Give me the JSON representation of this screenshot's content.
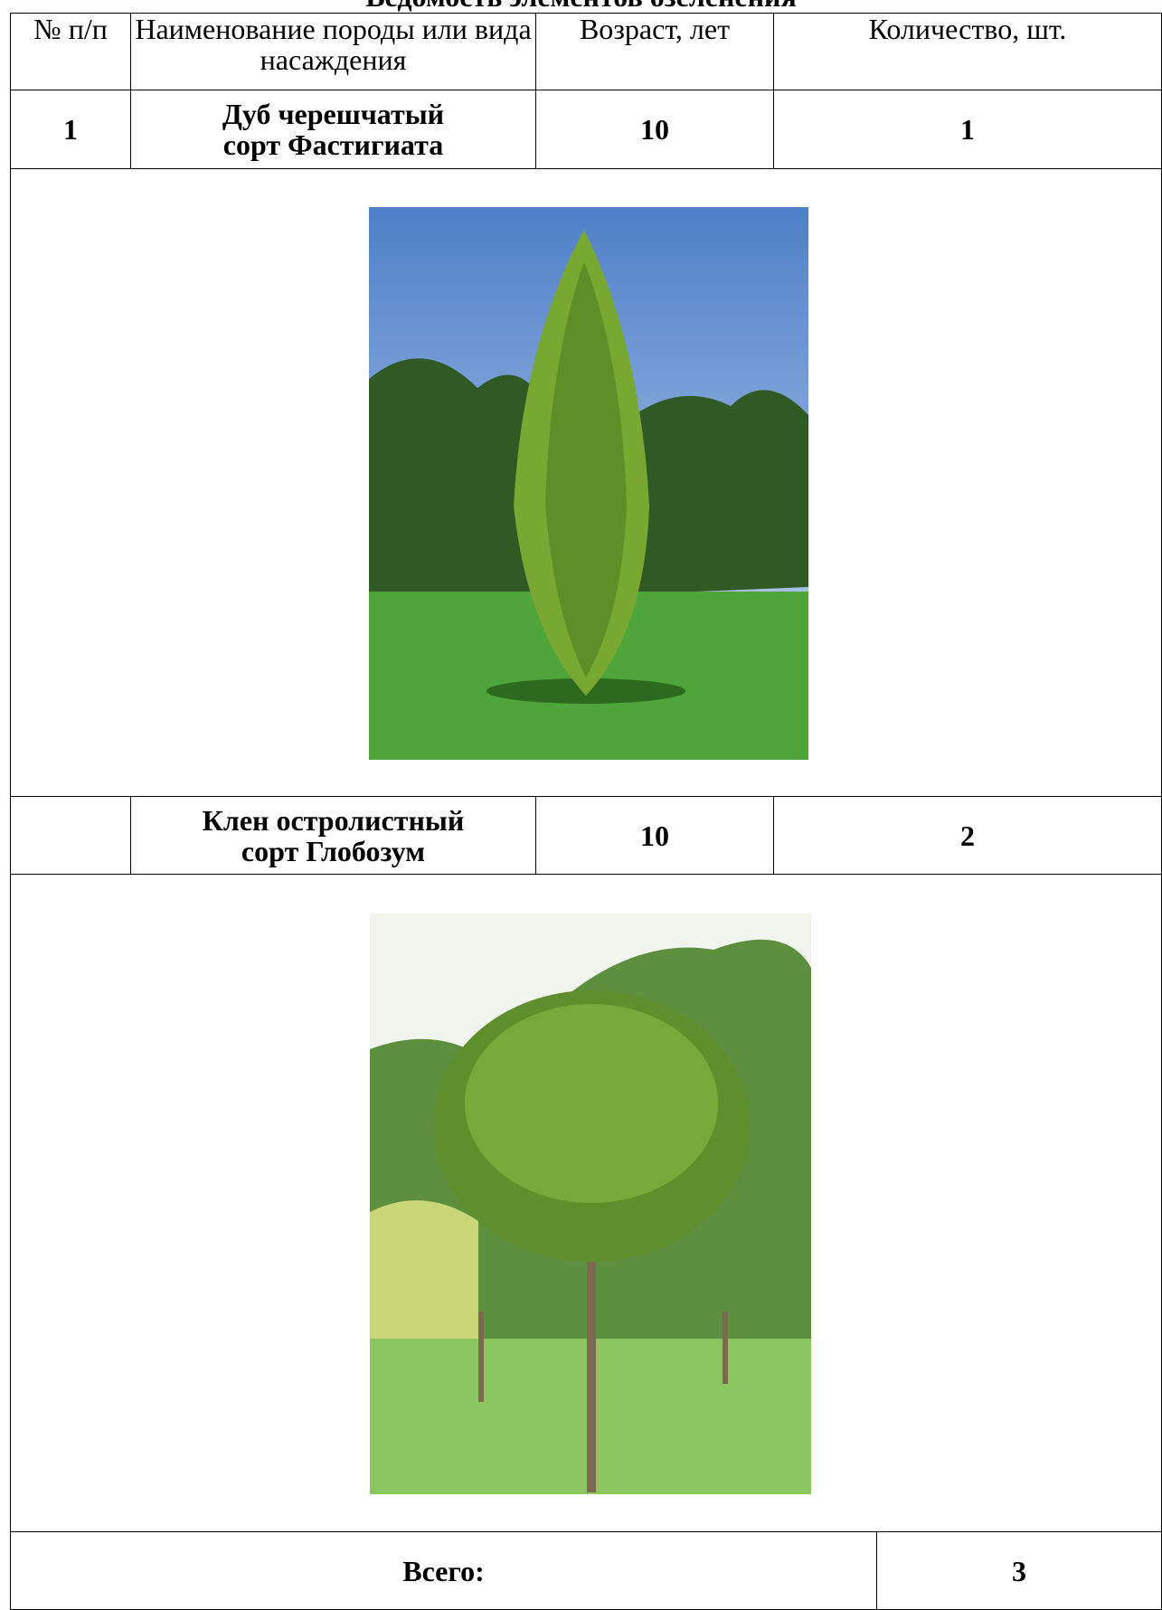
{
  "title": "Ведомость элементов озеленения",
  "table": {
    "header": [
      "№ п/п",
      "Наименование породы или вида насаждения",
      "Возраст, лет",
      "Количество, шт."
    ],
    "rows": [
      {
        "number": "1",
        "name": [
          "Дуб черешчатый",
          "сорт Фастигиата"
        ],
        "age": "10",
        "quantity": "1"
      },
      {
        "name": [
          "Клен остролистный",
          "сорт Глобозум"
        ],
        "age": "10",
        "quantity": "2"
      }
    ],
    "total": {
      "label": "Всего:",
      "value": "3"
    }
  }
}
